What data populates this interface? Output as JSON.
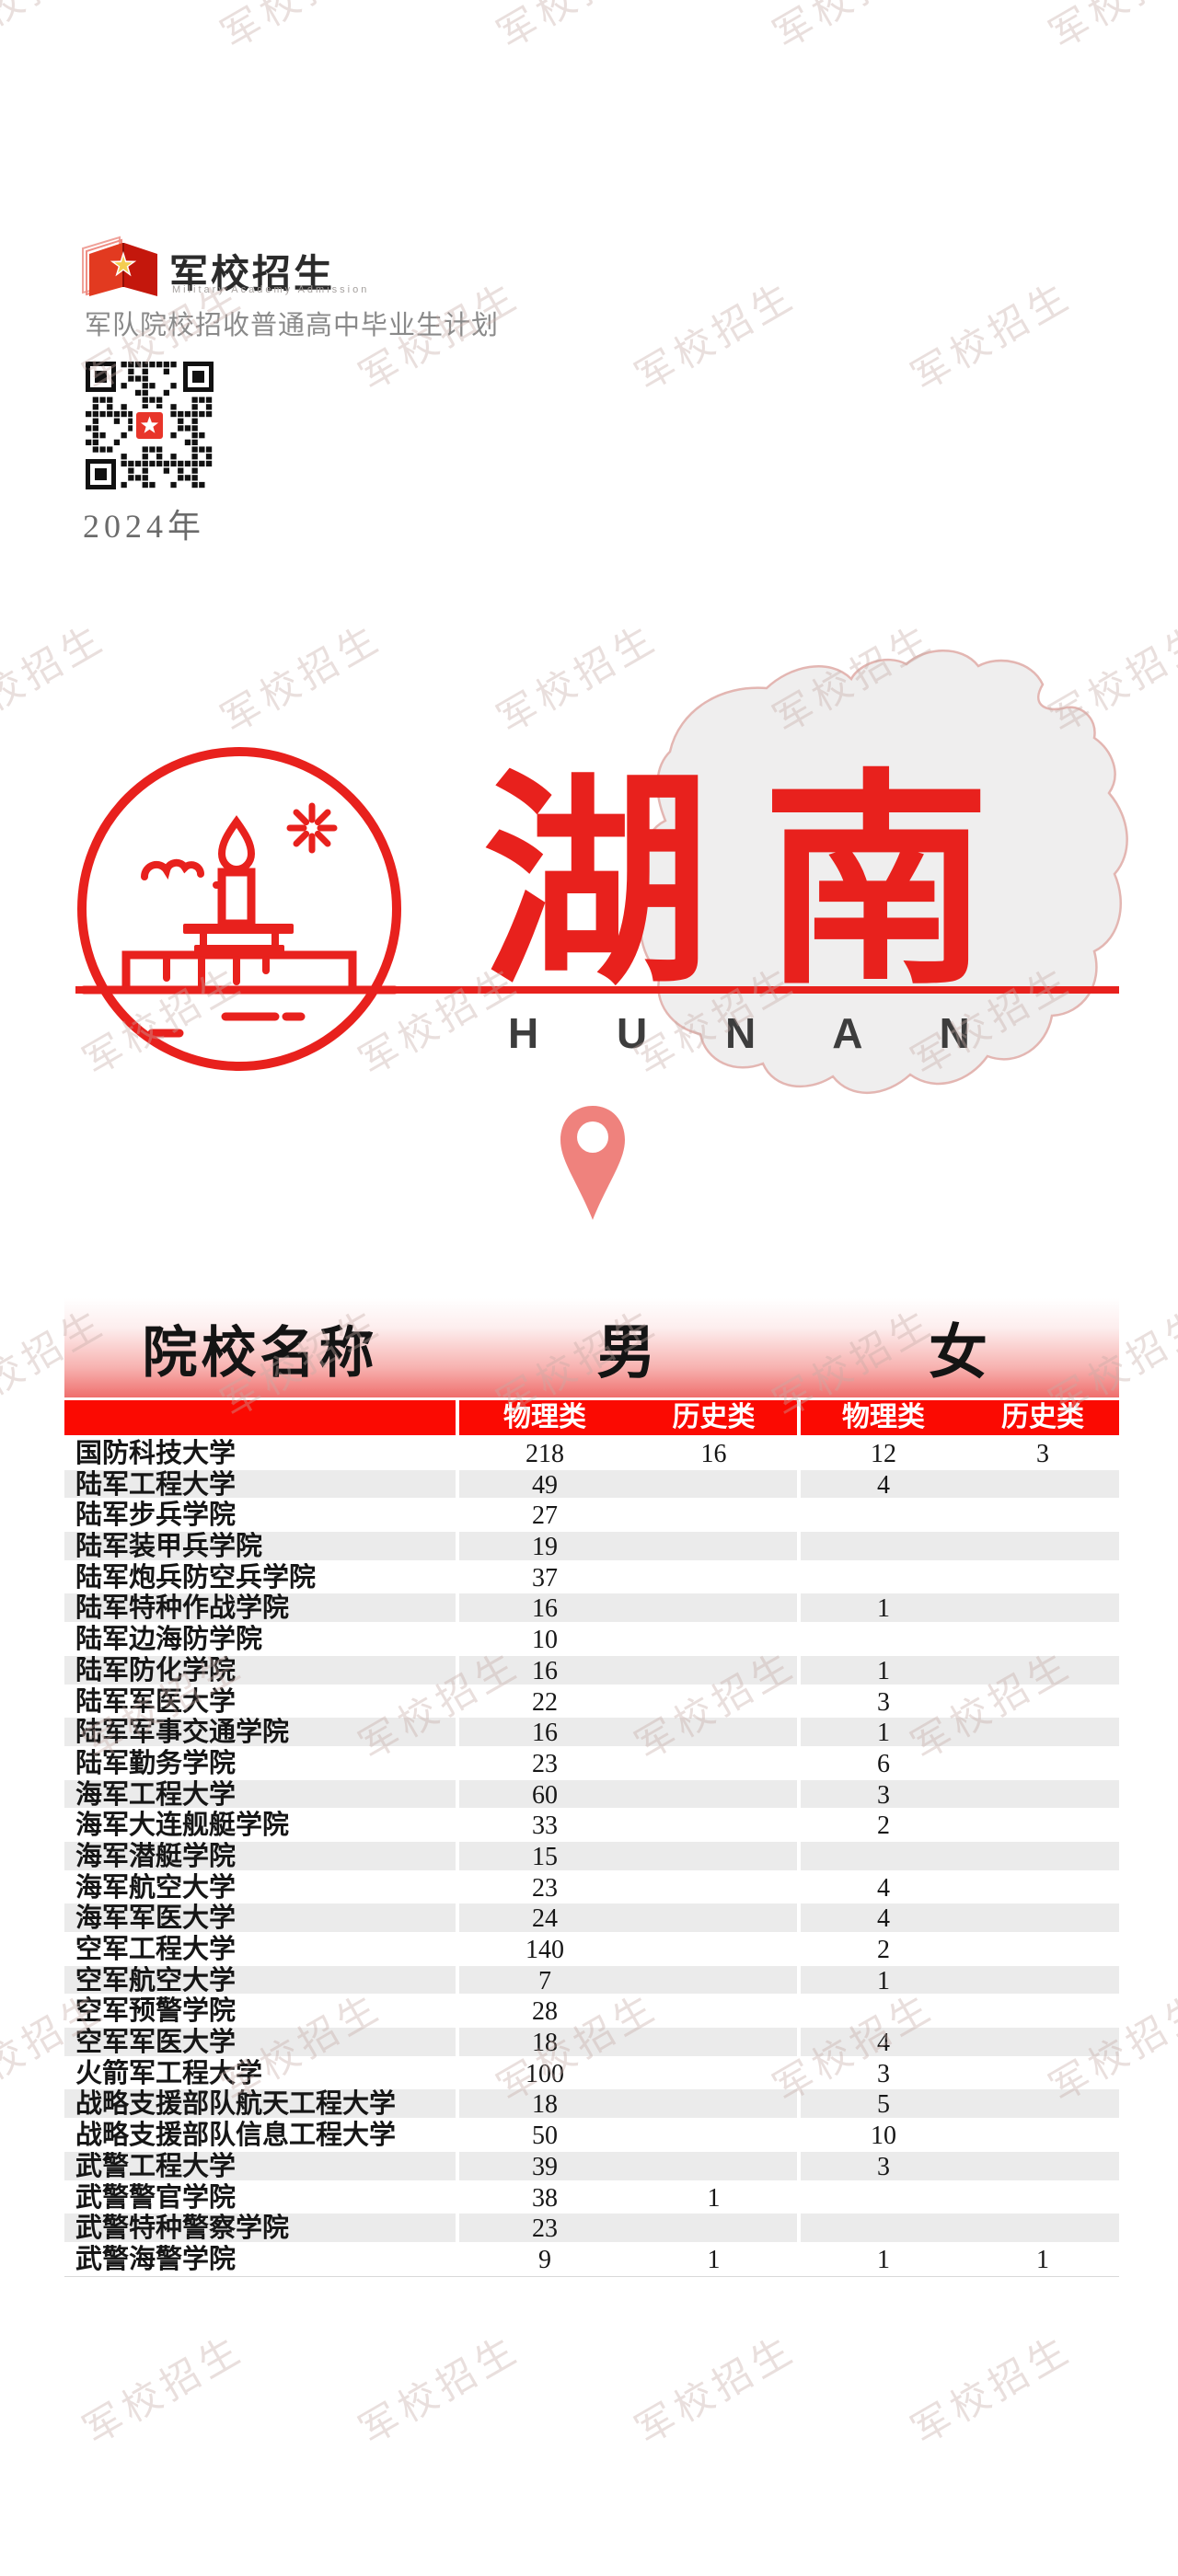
{
  "watermark": {
    "text": "军校招生"
  },
  "brand": {
    "title": "军校招生",
    "subtitle_en": "Military Academy Admission",
    "tagline": "军队院校招收普通高中毕业生计划",
    "year": "2024年"
  },
  "hero": {
    "province_cn": "湖南",
    "province_en": "H U N A N"
  },
  "table": {
    "columns": {
      "name": "院校名称",
      "male": "男",
      "female": "女",
      "subheaders": [
        "物理类",
        "历史类",
        "物理类",
        "历史类"
      ]
    },
    "rows": [
      {
        "name": "国防科技大学",
        "mp": "218",
        "mh": "16",
        "fp": "12",
        "fh": "3"
      },
      {
        "name": "陆军工程大学",
        "mp": "49",
        "mh": "",
        "fp": "4",
        "fh": ""
      },
      {
        "name": "陆军步兵学院",
        "mp": "27",
        "mh": "",
        "fp": "",
        "fh": ""
      },
      {
        "name": "陆军装甲兵学院",
        "mp": "19",
        "mh": "",
        "fp": "",
        "fh": ""
      },
      {
        "name": "陆军炮兵防空兵学院",
        "mp": "37",
        "mh": "",
        "fp": "",
        "fh": ""
      },
      {
        "name": "陆军特种作战学院",
        "mp": "16",
        "mh": "",
        "fp": "1",
        "fh": ""
      },
      {
        "name": "陆军边海防学院",
        "mp": "10",
        "mh": "",
        "fp": "",
        "fh": ""
      },
      {
        "name": "陆军防化学院",
        "mp": "16",
        "mh": "",
        "fp": "1",
        "fh": ""
      },
      {
        "name": "陆军军医大学",
        "mp": "22",
        "mh": "",
        "fp": "3",
        "fh": ""
      },
      {
        "name": "陆军军事交通学院",
        "mp": "16",
        "mh": "",
        "fp": "1",
        "fh": ""
      },
      {
        "name": "陆军勤务学院",
        "mp": "23",
        "mh": "",
        "fp": "6",
        "fh": ""
      },
      {
        "name": "海军工程大学",
        "mp": "60",
        "mh": "",
        "fp": "3",
        "fh": ""
      },
      {
        "name": "海军大连舰艇学院",
        "mp": "33",
        "mh": "",
        "fp": "2",
        "fh": ""
      },
      {
        "name": "海军潜艇学院",
        "mp": "15",
        "mh": "",
        "fp": "",
        "fh": ""
      },
      {
        "name": "海军航空大学",
        "mp": "23",
        "mh": "",
        "fp": "4",
        "fh": ""
      },
      {
        "name": "海军军医大学",
        "mp": "24",
        "mh": "",
        "fp": "4",
        "fh": ""
      },
      {
        "name": "空军工程大学",
        "mp": "140",
        "mh": "",
        "fp": "2",
        "fh": ""
      },
      {
        "name": "空军航空大学",
        "mp": "7",
        "mh": "",
        "fp": "1",
        "fh": ""
      },
      {
        "name": "空军预警学院",
        "mp": "28",
        "mh": "",
        "fp": "",
        "fh": ""
      },
      {
        "name": "空军军医大学",
        "mp": "18",
        "mh": "",
        "fp": "4",
        "fh": ""
      },
      {
        "name": "火箭军工程大学",
        "mp": "100",
        "mh": "",
        "fp": "3",
        "fh": ""
      },
      {
        "name": "战略支援部队航天工程大学",
        "mp": "18",
        "mh": "",
        "fp": "5",
        "fh": ""
      },
      {
        "name": "战略支援部队信息工程大学",
        "mp": "50",
        "mh": "",
        "fp": "10",
        "fh": ""
      },
      {
        "name": "武警工程大学",
        "mp": "39",
        "mh": "",
        "fp": "3",
        "fh": ""
      },
      {
        "name": "武警警官学院",
        "mp": "38",
        "mh": "1",
        "fp": "",
        "fh": ""
      },
      {
        "name": "武警特种警察学院",
        "mp": "23",
        "mh": "",
        "fp": "",
        "fh": ""
      },
      {
        "name": "武警海警学院",
        "mp": "9",
        "mh": "1",
        "fp": "1",
        "fh": "1"
      }
    ]
  },
  "colors": {
    "accent_red": "#e8211d",
    "bar_red": "#fb0a02",
    "header_gradient_bottom": "#ef6f6d",
    "row_alt_gray": "#ebebeb",
    "pin_salmon": "#ef827d",
    "map_fill": "#efeeee",
    "map_stroke": "#e3b6b2",
    "text_dark": "#161616",
    "text_gray": "#8a8a8a"
  }
}
